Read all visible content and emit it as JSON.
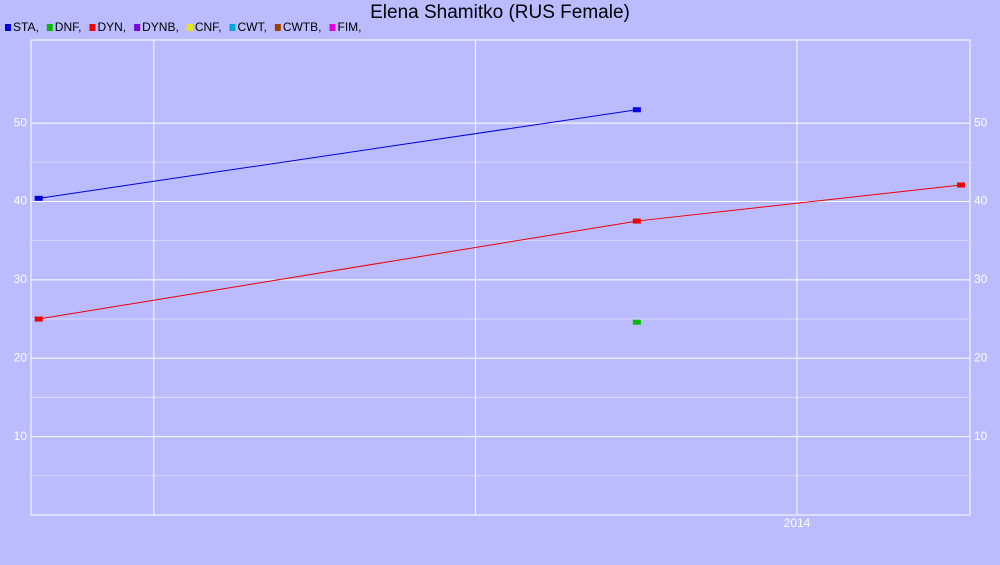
{
  "chart_data": {
    "type": "line",
    "title": "Elena Shamitko (RUS Female)",
    "series": [
      {
        "name": "STA,",
        "color": "#0000dd",
        "x": [
          2012.821,
          2013.751
        ],
        "values": [
          40.4,
          51.7
        ]
      },
      {
        "name": "DNF,",
        "color": "#00bb00",
        "x": [
          2013.751
        ],
        "values": [
          24.6
        ]
      },
      {
        "name": "DYN,",
        "color": "#ee0000",
        "x": [
          2012.821,
          2013.751,
          2014.255
        ],
        "values": [
          25.0,
          37.5,
          42.1
        ]
      },
      {
        "name": "DYNB,",
        "color": "#7a00e0",
        "x": [],
        "values": []
      },
      {
        "name": "CNF,",
        "color": "#e8e800",
        "x": [],
        "values": []
      },
      {
        "name": "CWT,",
        "color": "#00a8d8",
        "x": [],
        "values": []
      },
      {
        "name": "CWTB,",
        "color": "#a04000",
        "x": [],
        "values": []
      },
      {
        "name": "FIM,",
        "color": "#e000e0",
        "x": [],
        "values": []
      }
    ],
    "xlim": [
      2012.809,
      2014.269
    ],
    "xticks": [
      {
        "value": 2013,
        "label": null
      },
      {
        "value": 2013.5,
        "label": null
      },
      2014
    ],
    "ylim": [
      0,
      60.6
    ],
    "yticks": [
      10,
      20,
      30,
      40,
      50
    ],
    "grid": true,
    "legend": "top-left"
  }
}
